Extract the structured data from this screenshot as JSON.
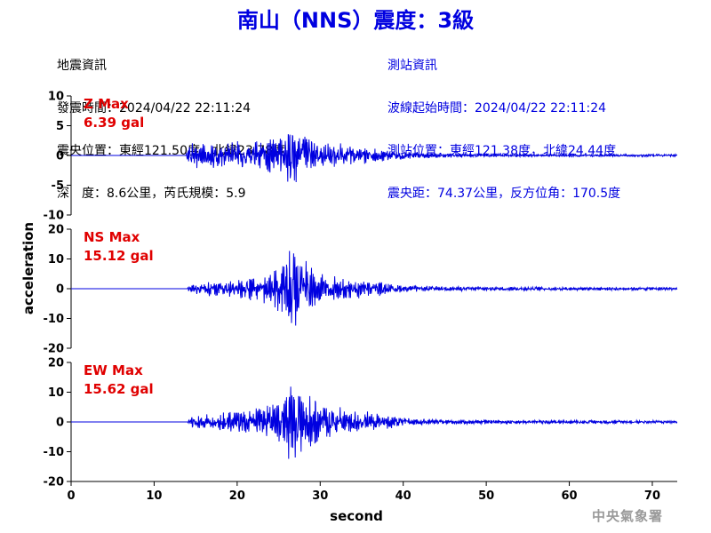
{
  "title": "南山（NNS）震度：3級",
  "earthquake_info": {
    "heading": "地震資訊",
    "origin_time": "發震時間：2024/04/22 22:11:24",
    "epicenter": "震央位置：東經121.50度，北緯23.78度",
    "depth_magnitude": "深　度：8.6公里，芮氏規模：5.9"
  },
  "station_info": {
    "heading": "測站資訊",
    "wave_start_time": "波線起始時間：2024/04/22 22:11:24",
    "station_position": "測站位置：東經121.38度，北緯24.44度",
    "distance_azimuth": "震央距：74.37公里，反方位角：170.5度"
  },
  "agency": "中央氣象署",
  "chart_data": {
    "type": "line",
    "xlabel": "second",
    "ylabel": "acceleration",
    "xlim": [
      0,
      73
    ],
    "xticks": [
      0,
      10,
      20,
      30,
      40,
      50,
      60,
      70
    ],
    "line_color": "#0000e0",
    "label_color": "#e00000",
    "panels": [
      {
        "name": "Z",
        "max_label": "Z Max",
        "max_value": "6.39 gal",
        "ylim": [
          -10,
          10
        ],
        "yticks": [
          10,
          5,
          0,
          -5,
          -10
        ],
        "envelope": [
          [
            0,
            0
          ],
          [
            13.8,
            0
          ],
          [
            14,
            2.0
          ],
          [
            15,
            2.6
          ],
          [
            17,
            2.2
          ],
          [
            19,
            2.4
          ],
          [
            21,
            2.6
          ],
          [
            23,
            3.0
          ],
          [
            25,
            4.0
          ],
          [
            26,
            5.2
          ],
          [
            26.5,
            6.39
          ],
          [
            27,
            5.6
          ],
          [
            28,
            4.8
          ],
          [
            29,
            3.6
          ],
          [
            31,
            2.6
          ],
          [
            33,
            2.0
          ],
          [
            35,
            1.6
          ],
          [
            37,
            1.3
          ],
          [
            39,
            1.0
          ],
          [
            42,
            0.6
          ],
          [
            45,
            0.4
          ],
          [
            50,
            0.3
          ],
          [
            60,
            0.25
          ],
          [
            73,
            0.22
          ]
        ]
      },
      {
        "name": "NS",
        "max_label": "NS Max",
        "max_value": "15.12 gal",
        "ylim": [
          -20,
          20
        ],
        "yticks": [
          20,
          10,
          0,
          -10,
          -20
        ],
        "envelope": [
          [
            0,
            0
          ],
          [
            14,
            0
          ],
          [
            14.2,
            1.6
          ],
          [
            16,
            2.6
          ],
          [
            18,
            3.4
          ],
          [
            20,
            3.8
          ],
          [
            22,
            4.6
          ],
          [
            24,
            6.0
          ],
          [
            25,
            8.5
          ],
          [
            26,
            13.0
          ],
          [
            26.5,
            15.12
          ],
          [
            27,
            14.2
          ],
          [
            28,
            11.0
          ],
          [
            29,
            8.0
          ],
          [
            31,
            6.0
          ],
          [
            33,
            4.6
          ],
          [
            35,
            3.6
          ],
          [
            37,
            2.8
          ],
          [
            39,
            1.6
          ],
          [
            42,
            1.1
          ],
          [
            45,
            0.9
          ],
          [
            50,
            0.8
          ],
          [
            60,
            0.7
          ],
          [
            73,
            0.6
          ]
        ]
      },
      {
        "name": "EW",
        "max_label": "EW Max",
        "max_value": "15.62 gal",
        "ylim": [
          -20,
          20
        ],
        "yticks": [
          20,
          10,
          0,
          -10,
          -20
        ],
        "envelope": [
          [
            0,
            0
          ],
          [
            14,
            0
          ],
          [
            14.2,
            1.8
          ],
          [
            16,
            2.8
          ],
          [
            18,
            3.8
          ],
          [
            20,
            4.2
          ],
          [
            22,
            4.6
          ],
          [
            24,
            6.5
          ],
          [
            25,
            10.0
          ],
          [
            26,
            13.0
          ],
          [
            27,
            15.62
          ],
          [
            28,
            14.0
          ],
          [
            29,
            11.0
          ],
          [
            30,
            8.0
          ],
          [
            32,
            5.5
          ],
          [
            34,
            4.2
          ],
          [
            36,
            3.4
          ],
          [
            38,
            2.6
          ],
          [
            40,
            1.6
          ],
          [
            43,
            1.1
          ],
          [
            46,
            0.9
          ],
          [
            50,
            0.8
          ],
          [
            60,
            0.7
          ],
          [
            73,
            0.6
          ]
        ]
      }
    ]
  }
}
